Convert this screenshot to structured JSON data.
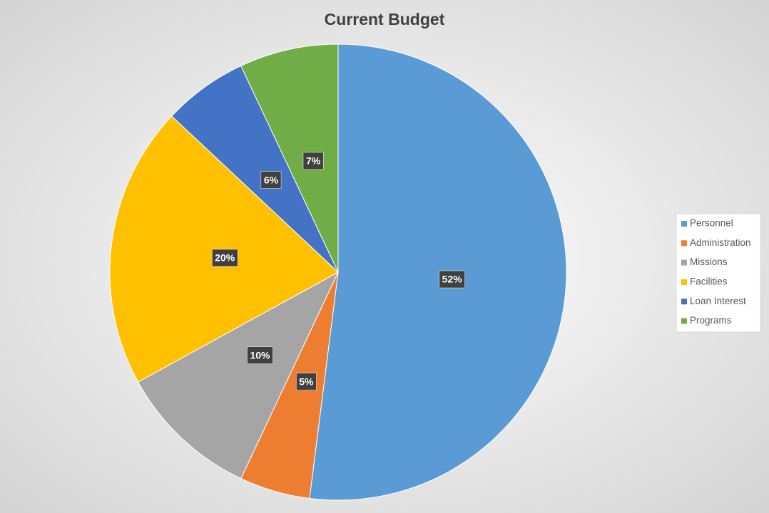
{
  "chart_data": {
    "type": "pie",
    "title": "Current Budget",
    "categories": [
      "Personnel",
      "Administration",
      "Missions",
      "Facilities",
      "Loan Interest",
      "Programs"
    ],
    "values": [
      52,
      5,
      10,
      20,
      6,
      7
    ],
    "value_labels": [
      "52%",
      "5%",
      "10%",
      "20%",
      "6%",
      "7%"
    ],
    "colors": [
      "#5b9bd5",
      "#ed7d31",
      "#a5a5a5",
      "#ffc000",
      "#4472c4",
      "#70ad47"
    ],
    "legend": "right"
  }
}
